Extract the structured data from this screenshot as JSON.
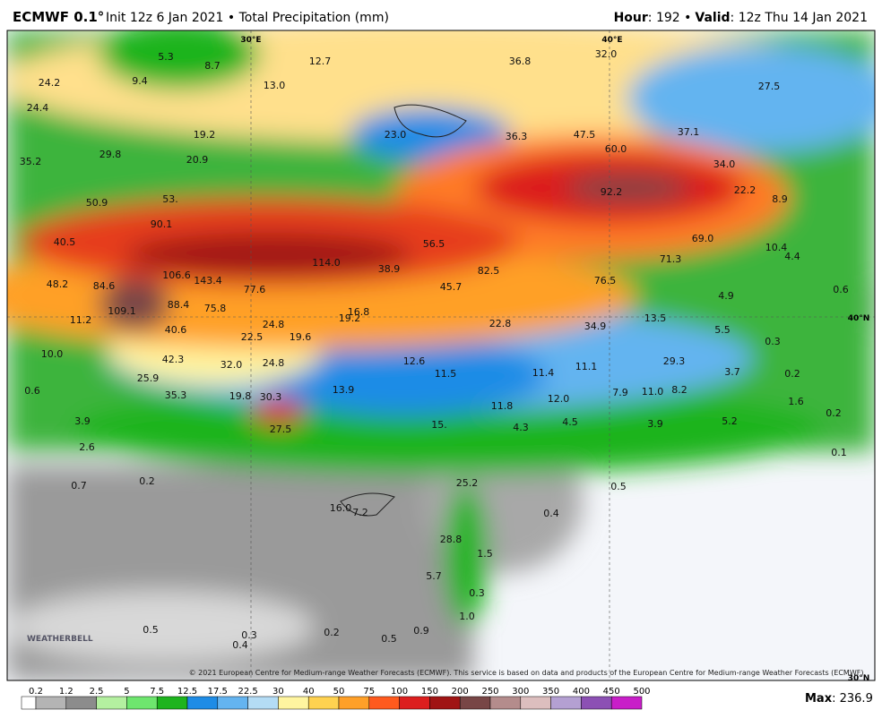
{
  "header": {
    "model": "ECMWF 0.1°",
    "init": "Init 12z 6 Jan 2021 • Total Precipitation (mm)",
    "hour_key": "Hour",
    "hour_val": ": 192 •",
    "valid_key": "Valid",
    "valid_val": ": 12z Thu 14 Jan 2021"
  },
  "map": {
    "grid_labels": [
      "30°E",
      "40°E",
      "40°N",
      "30°N"
    ],
    "labels": [
      "5.3",
      "8.7",
      "12.7",
      "36.8",
      "32.0",
      "24.2",
      "9.4",
      "13.0",
      "27.5",
      "24.4",
      "19.2",
      "23.0",
      "36.3",
      "47.5",
      "37.1",
      "35.2",
      "29.8",
      "20.9",
      "60.0",
      "34.0",
      "92.2",
      "22.2",
      "8.9",
      "53.",
      "50.9",
      "90.1",
      "69.0",
      "40.5",
      "56.5",
      "10.4",
      "114.0",
      "38.9",
      "82.5",
      "71.3",
      "4.4",
      "106.6",
      "143.4",
      "76.5",
      "45.7",
      "77.6",
      "84.6",
      "48.2",
      "4.9",
      "0.6",
      "88.4",
      "75.8",
      "109.1",
      "16.8",
      "19.2",
      "13.5",
      "11.2",
      "40.6",
      "24.8",
      "22.8",
      "34.9",
      "5.5",
      "19.6",
      "22.5",
      "0.3",
      "42.3",
      "32.0",
      "24.8",
      "12.6",
      "29.3",
      "10.0",
      "11.5",
      "11.4",
      "11.1",
      "3.7",
      "0.2",
      "25.9",
      "13.9",
      "0.6",
      "35.3",
      "19.8",
      "30.3",
      "12.0",
      "7.9",
      "11.0",
      "8.2",
      "1.6",
      "11.8",
      "0.2",
      "3.9",
      "15.",
      "4.3",
      "4.5",
      "3.9",
      "5.2",
      "27.5",
      "2.6",
      "0.1",
      "0.7",
      "0.2",
      "25.2",
      "0.5",
      "16.0",
      "7.2",
      "0.4",
      "28.8",
      "1.5",
      "5.7",
      "0.3",
      "1.0",
      "0.5",
      "0.3",
      "0.2",
      "0.5",
      "0.9",
      "0.4"
    ],
    "logo": "WEATHERBELL",
    "credit": "© 2021 European Centre for Medium-range Weather Forecasts (ECMWF). This service is based on data and products of the European Centre for Medium-range Weather Forecasts (ECMWF)."
  },
  "colorbar": {
    "ticks": [
      "0.2",
      "1.2",
      "2.5",
      "5",
      "7.5",
      "12.5",
      "17.5",
      "22.5",
      "30",
      "40",
      "50",
      "75",
      "100",
      "150",
      "200",
      "250",
      "300",
      "350",
      "400",
      "450",
      "500"
    ],
    "colors": [
      "#ffffff",
      "#b4b4b4",
      "#8c8c8c",
      "#b4f0a0",
      "#6ee66e",
      "#1eb41e",
      "#1e8ce6",
      "#64b4f0",
      "#b4dcf5",
      "#fff5a0",
      "#ffd250",
      "#ffa028",
      "#ff5a1e",
      "#dc1e1e",
      "#a01414",
      "#784646",
      "#b48c8c",
      "#dcbebe",
      "#b4a0d2",
      "#8c50b4",
      "#c81ec8"
    ],
    "max_key": "Max",
    "max_val": ": 236.9"
  }
}
